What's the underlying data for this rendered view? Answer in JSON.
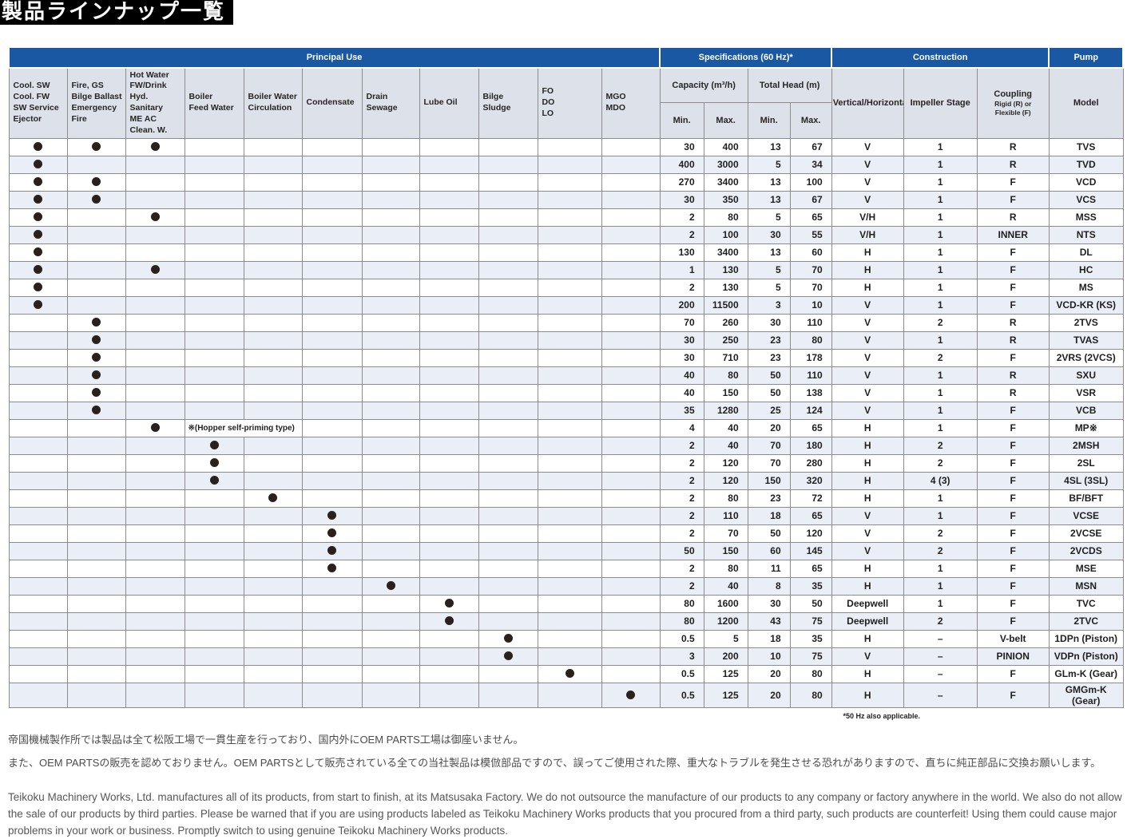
{
  "title": "製品ラインナップ一覧",
  "colors": {
    "header_blue": "#1a58a3",
    "subheader_bg": "#dde1e9",
    "stripe": "#eaeef7",
    "title_bg": "#000000",
    "dot": "#2a211c"
  },
  "table": {
    "groups": {
      "principal_use": "Principal Use",
      "specifications": "Specifications (60 Hz)*",
      "construction": "Construction",
      "pump": "Pump"
    },
    "use_columns": [
      "Cool. SW\nCool. FW\nSW Service\nEjector",
      "Fire, GS\nBilge Ballast\nEmergency Fire",
      "Hot Water\nFW/Drink Hyd.\nSanitary\nME AC Clean. W.",
      "Boiler\nFeed Water",
      "Boiler Water\nCirculation",
      "Condensate",
      "Drain\nSewage",
      "Lube Oil",
      "Bilge\nSludge",
      "FO\nDO\nLO",
      "MGO\nMDO"
    ],
    "spec_columns": {
      "capacity": "Capacity (m³/h)",
      "total_head": "Total Head (m)",
      "min": "Min.",
      "max": "Max."
    },
    "construction_columns": [
      "Vertical/Horizontal",
      "Impeller Stage",
      "Coupling"
    ],
    "coupling_sub": "Rigid (R) or\nFlexible (F)",
    "model_column": "Model",
    "footnote": "*50 Hz also applicable.",
    "rows": [
      {
        "uses": [
          1,
          1,
          1,
          0,
          0,
          0,
          0,
          0,
          0,
          0,
          0
        ],
        "cap_min": "30",
        "cap_max": "400",
        "head_min": "13",
        "head_max": "67",
        "vh": "V",
        "stage": "1",
        "coupling": "R",
        "model": "TVS"
      },
      {
        "uses": [
          1,
          0,
          0,
          0,
          0,
          0,
          0,
          0,
          0,
          0,
          0
        ],
        "cap_min": "400",
        "cap_max": "3000",
        "head_min": "5",
        "head_max": "34",
        "vh": "V",
        "stage": "1",
        "coupling": "R",
        "model": "TVD"
      },
      {
        "uses": [
          1,
          1,
          0,
          0,
          0,
          0,
          0,
          0,
          0,
          0,
          0
        ],
        "cap_min": "270",
        "cap_max": "3400",
        "head_min": "13",
        "head_max": "100",
        "vh": "V",
        "stage": "1",
        "coupling": "F",
        "model": "VCD"
      },
      {
        "uses": [
          1,
          1,
          0,
          0,
          0,
          0,
          0,
          0,
          0,
          0,
          0
        ],
        "cap_min": "30",
        "cap_max": "350",
        "head_min": "13",
        "head_max": "67",
        "vh": "V",
        "stage": "1",
        "coupling": "F",
        "model": "VCS"
      },
      {
        "uses": [
          1,
          0,
          1,
          0,
          0,
          0,
          0,
          0,
          0,
          0,
          0
        ],
        "cap_min": "2",
        "cap_max": "80",
        "head_min": "5",
        "head_max": "65",
        "vh": "V/H",
        "stage": "1",
        "coupling": "R",
        "model": "MSS"
      },
      {
        "uses": [
          1,
          0,
          0,
          0,
          0,
          0,
          0,
          0,
          0,
          0,
          0
        ],
        "cap_min": "2",
        "cap_max": "100",
        "head_min": "30",
        "head_max": "55",
        "vh": "V/H",
        "stage": "1",
        "coupling": "INNER",
        "model": "NTS"
      },
      {
        "uses": [
          1,
          0,
          0,
          0,
          0,
          0,
          0,
          0,
          0,
          0,
          0
        ],
        "cap_min": "130",
        "cap_max": "3400",
        "head_min": "13",
        "head_max": "60",
        "vh": "H",
        "stage": "1",
        "coupling": "F",
        "model": "DL"
      },
      {
        "uses": [
          1,
          0,
          1,
          0,
          0,
          0,
          0,
          0,
          0,
          0,
          0
        ],
        "cap_min": "1",
        "cap_max": "130",
        "head_min": "5",
        "head_max": "70",
        "vh": "H",
        "stage": "1",
        "coupling": "F",
        "model": "HC"
      },
      {
        "uses": [
          1,
          0,
          0,
          0,
          0,
          0,
          0,
          0,
          0,
          0,
          0
        ],
        "cap_min": "2",
        "cap_max": "130",
        "head_min": "5",
        "head_max": "70",
        "vh": "H",
        "stage": "1",
        "coupling": "F",
        "model": "MS"
      },
      {
        "uses": [
          1,
          0,
          0,
          0,
          0,
          0,
          0,
          0,
          0,
          0,
          0
        ],
        "cap_min": "200",
        "cap_max": "11500",
        "head_min": "3",
        "head_max": "10",
        "vh": "V",
        "stage": "1",
        "coupling": "F",
        "model": "VCD-KR (KS)"
      },
      {
        "uses": [
          0,
          1,
          0,
          0,
          0,
          0,
          0,
          0,
          0,
          0,
          0
        ],
        "cap_min": "70",
        "cap_max": "260",
        "head_min": "30",
        "head_max": "110",
        "vh": "V",
        "stage": "2",
        "coupling": "R",
        "model": "2TVS"
      },
      {
        "uses": [
          0,
          1,
          0,
          0,
          0,
          0,
          0,
          0,
          0,
          0,
          0
        ],
        "cap_min": "30",
        "cap_max": "250",
        "head_min": "23",
        "head_max": "80",
        "vh": "V",
        "stage": "1",
        "coupling": "R",
        "model": "TVAS"
      },
      {
        "uses": [
          0,
          1,
          0,
          0,
          0,
          0,
          0,
          0,
          0,
          0,
          0
        ],
        "cap_min": "30",
        "cap_max": "710",
        "head_min": "23",
        "head_max": "178",
        "vh": "V",
        "stage": "2",
        "coupling": "F",
        "model": "2VRS (2VCS)"
      },
      {
        "uses": [
          0,
          1,
          0,
          0,
          0,
          0,
          0,
          0,
          0,
          0,
          0
        ],
        "cap_min": "40",
        "cap_max": "80",
        "head_min": "50",
        "head_max": "110",
        "vh": "V",
        "stage": "1",
        "coupling": "R",
        "model": "SXU"
      },
      {
        "uses": [
          0,
          1,
          0,
          0,
          0,
          0,
          0,
          0,
          0,
          0,
          0
        ],
        "cap_min": "40",
        "cap_max": "150",
        "head_min": "50",
        "head_max": "138",
        "vh": "V",
        "stage": "1",
        "coupling": "R",
        "model": "VSR"
      },
      {
        "uses": [
          0,
          1,
          0,
          0,
          0,
          0,
          0,
          0,
          0,
          0,
          0
        ],
        "cap_min": "35",
        "cap_max": "1280",
        "head_min": "25",
        "head_max": "124",
        "vh": "V",
        "stage": "1",
        "coupling": "F",
        "model": "VCB"
      },
      {
        "uses": [
          0,
          0,
          1,
          0,
          0,
          0,
          0,
          0,
          0,
          0,
          0
        ],
        "note": "※(Hopper self-priming type)",
        "cap_min": "4",
        "cap_max": "40",
        "head_min": "20",
        "head_max": "65",
        "vh": "H",
        "stage": "1",
        "coupling": "F",
        "model": "MP※"
      },
      {
        "uses": [
          0,
          0,
          0,
          1,
          0,
          0,
          0,
          0,
          0,
          0,
          0
        ],
        "cap_min": "2",
        "cap_max": "40",
        "head_min": "70",
        "head_max": "180",
        "vh": "H",
        "stage": "2",
        "coupling": "F",
        "model": "2MSH"
      },
      {
        "uses": [
          0,
          0,
          0,
          1,
          0,
          0,
          0,
          0,
          0,
          0,
          0
        ],
        "cap_min": "2",
        "cap_max": "120",
        "head_min": "70",
        "head_max": "280",
        "vh": "H",
        "stage": "2",
        "coupling": "F",
        "model": "2SL"
      },
      {
        "uses": [
          0,
          0,
          0,
          1,
          0,
          0,
          0,
          0,
          0,
          0,
          0
        ],
        "cap_min": "2",
        "cap_max": "120",
        "head_min": "150",
        "head_max": "320",
        "vh": "H",
        "stage": "4 (3)",
        "coupling": "F",
        "model": "4SL (3SL)"
      },
      {
        "uses": [
          0,
          0,
          0,
          0,
          1,
          0,
          0,
          0,
          0,
          0,
          0
        ],
        "cap_min": "2",
        "cap_max": "80",
        "head_min": "23",
        "head_max": "72",
        "vh": "H",
        "stage": "1",
        "coupling": "F",
        "model": "BF/BFT"
      },
      {
        "uses": [
          0,
          0,
          0,
          0,
          0,
          1,
          0,
          0,
          0,
          0,
          0
        ],
        "cap_min": "2",
        "cap_max": "110",
        "head_min": "18",
        "head_max": "65",
        "vh": "V",
        "stage": "1",
        "coupling": "F",
        "model": "VCSE"
      },
      {
        "uses": [
          0,
          0,
          0,
          0,
          0,
          1,
          0,
          0,
          0,
          0,
          0
        ],
        "cap_min": "2",
        "cap_max": "70",
        "head_min": "50",
        "head_max": "120",
        "vh": "V",
        "stage": "2",
        "coupling": "F",
        "model": "2VCSE"
      },
      {
        "uses": [
          0,
          0,
          0,
          0,
          0,
          1,
          0,
          0,
          0,
          0,
          0
        ],
        "cap_min": "50",
        "cap_max": "150",
        "head_min": "60",
        "head_max": "145",
        "vh": "V",
        "stage": "2",
        "coupling": "F",
        "model": "2VCDS"
      },
      {
        "uses": [
          0,
          0,
          0,
          0,
          0,
          1,
          0,
          0,
          0,
          0,
          0
        ],
        "cap_min": "2",
        "cap_max": "80",
        "head_min": "11",
        "head_max": "65",
        "vh": "H",
        "stage": "1",
        "coupling": "F",
        "model": "MSE"
      },
      {
        "uses": [
          0,
          0,
          0,
          0,
          0,
          0,
          1,
          0,
          0,
          0,
          0
        ],
        "cap_min": "2",
        "cap_max": "40",
        "head_min": "8",
        "head_max": "35",
        "vh": "H",
        "stage": "1",
        "coupling": "F",
        "model": "MSN"
      },
      {
        "uses": [
          0,
          0,
          0,
          0,
          0,
          0,
          0,
          1,
          0,
          0,
          0
        ],
        "cap_min": "80",
        "cap_max": "1600",
        "head_min": "30",
        "head_max": "50",
        "vh": "Deepwell",
        "stage": "1",
        "coupling": "F",
        "model": "TVC"
      },
      {
        "uses": [
          0,
          0,
          0,
          0,
          0,
          0,
          0,
          1,
          0,
          0,
          0
        ],
        "cap_min": "80",
        "cap_max": "1200",
        "head_min": "43",
        "head_max": "75",
        "vh": "Deepwell",
        "stage": "2",
        "coupling": "F",
        "model": "2TVC"
      },
      {
        "uses": [
          0,
          0,
          0,
          0,
          0,
          0,
          0,
          0,
          1,
          0,
          0
        ],
        "cap_min": "0.5",
        "cap_max": "5",
        "head_min": "18",
        "head_max": "35",
        "vh": "H",
        "stage": "–",
        "coupling": "V-belt",
        "model": "1DPn (Piston)"
      },
      {
        "uses": [
          0,
          0,
          0,
          0,
          0,
          0,
          0,
          0,
          1,
          0,
          0
        ],
        "cap_min": "3",
        "cap_max": "200",
        "head_min": "10",
        "head_max": "75",
        "vh": "V",
        "stage": "–",
        "coupling": "PINION",
        "model": "VDPn (Piston)"
      },
      {
        "uses": [
          0,
          0,
          0,
          0,
          0,
          0,
          0,
          0,
          0,
          1,
          0
        ],
        "cap_min": "0.5",
        "cap_max": "125",
        "head_min": "20",
        "head_max": "80",
        "vh": "H",
        "stage": "–",
        "coupling": "F",
        "model": "GLm-K (Gear)"
      },
      {
        "uses": [
          0,
          0,
          0,
          0,
          0,
          0,
          0,
          0,
          0,
          0,
          1
        ],
        "cap_min": "0.5",
        "cap_max": "125",
        "head_min": "20",
        "head_max": "80",
        "vh": "H",
        "stage": "–",
        "coupling": "F",
        "model": "GMGm-K (Gear)"
      }
    ]
  },
  "notes_ja": [
    "帝国機械製作所では製品は全て松阪工場で一貫生産を行っており、国内外にOEM PARTS工場は御座いません。",
    "また、OEM PARTSの販売を認めておりません。OEM PARTSとして販売されている全ての当社製品は模倣部品ですので、誤ってご使用された際、重大なトラブルを発生させる恐れがありますので、直ちに純正部品に交換お願いします。"
  ],
  "notes_en": "Teikoku Machinery Works, Ltd. manufactures all of its products, from start to finish, at its Matsusaka Factory. We do not outsource the manufacture of our products to any company or factory anywhere in the world. We also do not allow the sale of our products by third parties. Please be warned that if you are using products labeled as Teikoku Machinery Works products that you procured from a third party, such products are counterfeit! Using them could cause major problems in your work or business. Promptly switch to using genuine Teikoku Machinery Works products."
}
